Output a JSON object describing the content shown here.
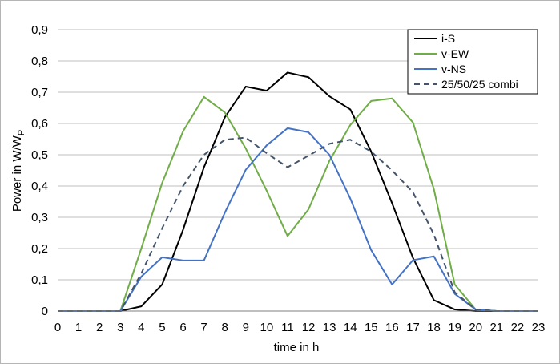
{
  "chart_data": {
    "type": "line",
    "title": "",
    "xlabel": "time in h",
    "ylabel": {
      "base": "Power in W/W",
      "subscript": "P"
    },
    "x": [
      0,
      1,
      2,
      3,
      4,
      5,
      6,
      7,
      8,
      9,
      10,
      11,
      12,
      13,
      14,
      15,
      16,
      17,
      18,
      19,
      20,
      21,
      22,
      23
    ],
    "x_tick_labels": [
      "0",
      "1",
      "2",
      "3",
      "4",
      "5",
      "6",
      "7",
      "8",
      "9",
      "10",
      "11",
      "12",
      "13",
      "14",
      "15",
      "16",
      "17",
      "18",
      "19",
      "20",
      "21",
      "22",
      "23"
    ],
    "ylim": [
      0,
      0.9
    ],
    "xlim": [
      0,
      23
    ],
    "y_tick_labels": [
      "0",
      "0,1",
      "0,2",
      "0,3",
      "0,4",
      "0,5",
      "0,6",
      "0,7",
      "0,8",
      "0,9"
    ],
    "grid": "horizontal",
    "legend_position": "top-right",
    "series": [
      {
        "name": "i-S",
        "color": "#000000",
        "dash": "solid",
        "values": [
          0,
          0,
          0,
          0,
          0.015,
          0.085,
          0.26,
          0.46,
          0.62,
          0.718,
          0.705,
          0.763,
          0.748,
          0.687,
          0.645,
          0.51,
          0.345,
          0.17,
          0.035,
          0.005,
          0,
          0,
          0,
          0
        ]
      },
      {
        "name": "v-EW",
        "color": "#70ad47",
        "dash": "solid",
        "values": [
          0,
          0,
          0,
          0,
          0.2,
          0.41,
          0.575,
          0.685,
          0.635,
          0.52,
          0.385,
          0.24,
          0.325,
          0.48,
          0.595,
          0.672,
          0.68,
          0.603,
          0.39,
          0.085,
          0.005,
          0,
          0,
          0
        ]
      },
      {
        "name": "v-NS",
        "color": "#4472c4",
        "dash": "solid",
        "values": [
          0,
          0,
          0,
          0,
          0.11,
          0.172,
          0.162,
          0.162,
          0.315,
          0.452,
          0.53,
          0.585,
          0.572,
          0.5,
          0.36,
          0.195,
          0.085,
          0.163,
          0.175,
          0.055,
          0.005,
          0,
          0,
          0
        ]
      },
      {
        "name": "25/50/25 combi",
        "color": "#44546a",
        "dash": "dashed",
        "values": [
          0,
          0,
          0,
          0,
          0.12,
          0.265,
          0.4,
          0.5,
          0.548,
          0.555,
          0.505,
          0.46,
          0.497,
          0.535,
          0.548,
          0.51,
          0.45,
          0.38,
          0.245,
          0.06,
          0.005,
          0,
          0,
          0
        ]
      }
    ]
  }
}
